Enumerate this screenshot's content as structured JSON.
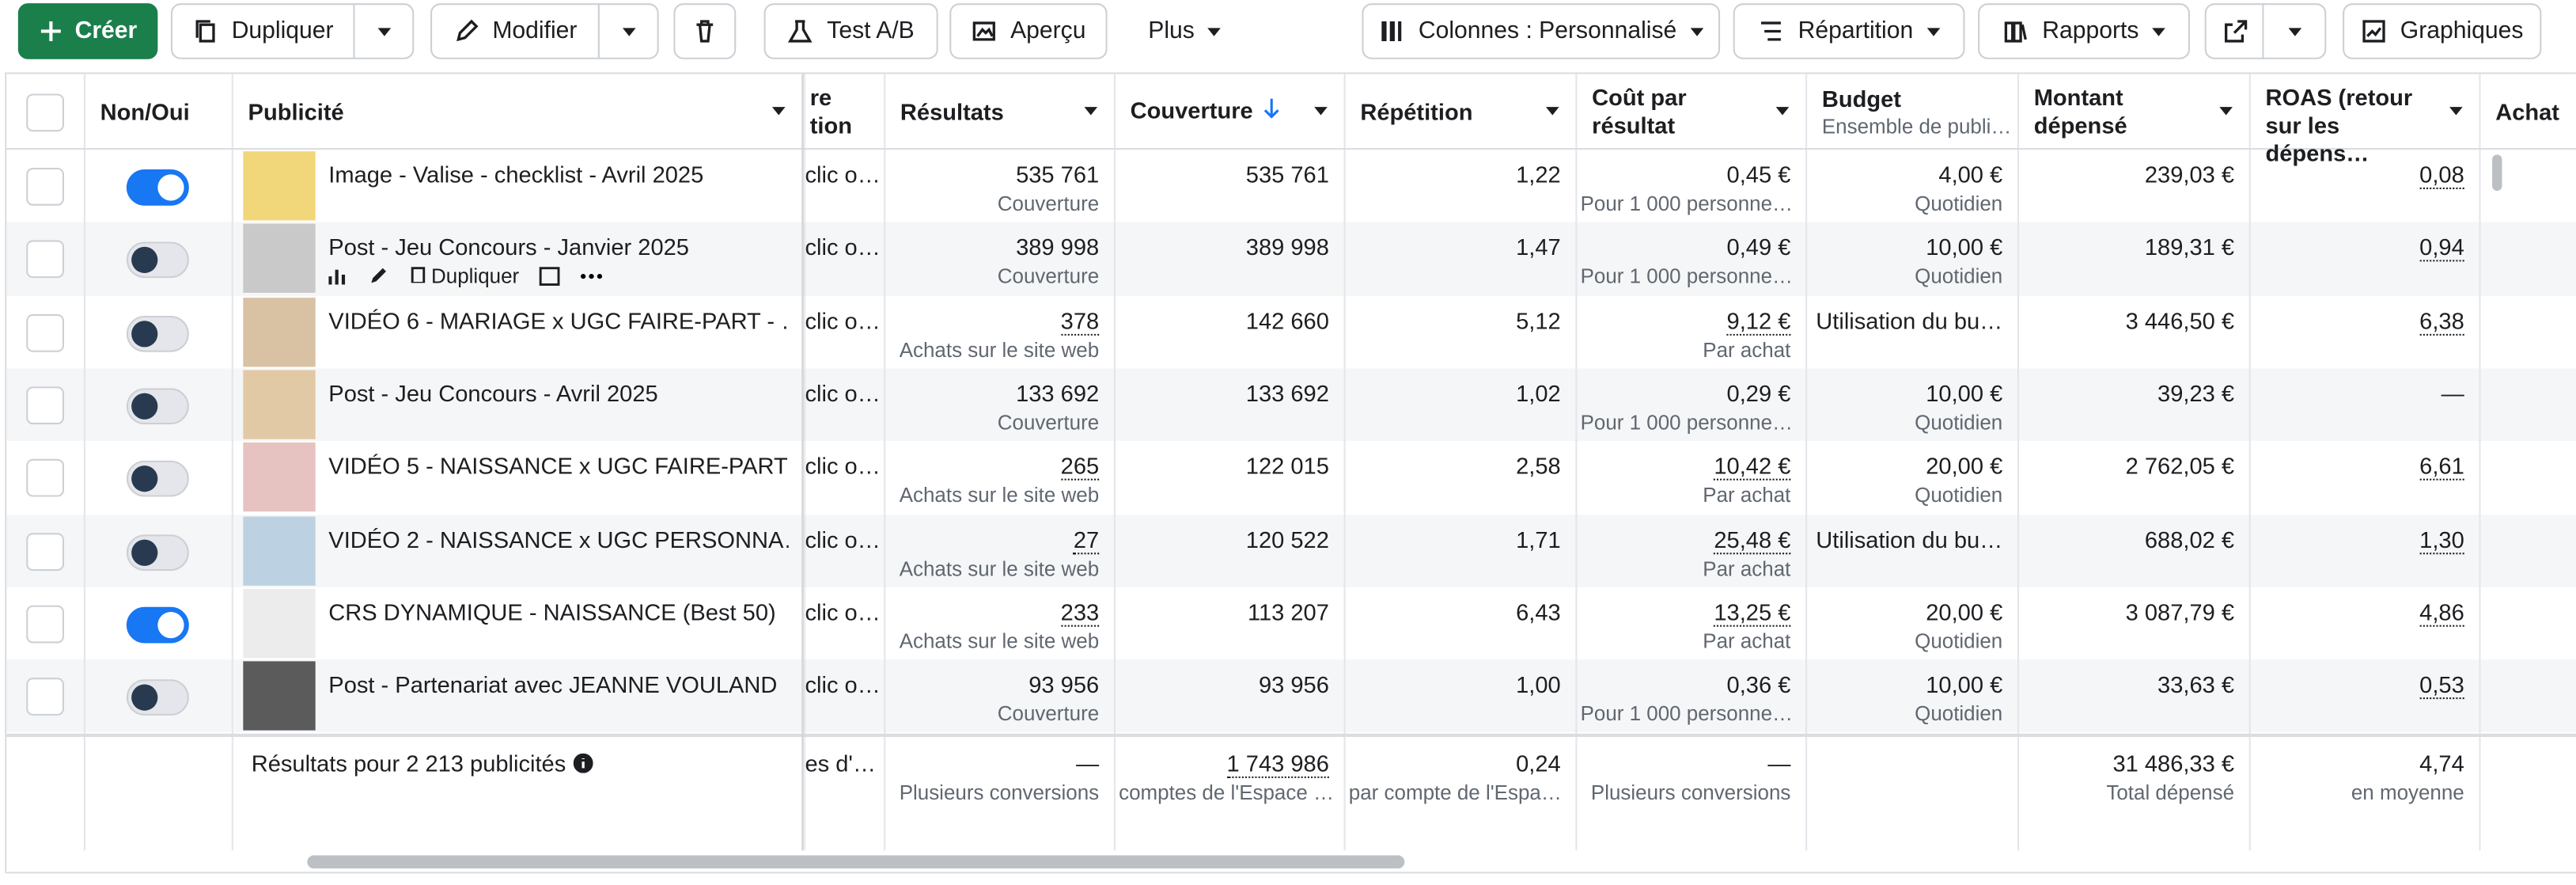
{
  "toolbar": {
    "create": "Créer",
    "duplicate": "Dupliquer",
    "edit": "Modifier",
    "ab_test": "Test A/B",
    "preview": "Aperçu",
    "more": "Plus",
    "columns": "Colonnes : Personnalisé",
    "breakdown": "Répartition",
    "reports": "Rapports",
    "charts": "Graphiques"
  },
  "table": {
    "headers": {
      "toggle": "Non/Oui",
      "ad": "Publicité",
      "partial": "re\ntion",
      "results": "Résultats",
      "reach": "Couverture",
      "frequency": "Répétition",
      "cost": "Coût par résultat",
      "budget": {
        "label": "Budget",
        "sub": "Ensemble de publi…"
      },
      "spent": "Montant dépensé",
      "roas": "ROAS (retour sur les dépens…",
      "purchase": "Achat"
    },
    "hover_action": "Dupliquer",
    "rows": [
      {
        "on": true,
        "name": "Image - Valise - checklist - Avril 2025",
        "partial": "clic o…",
        "results": {
          "value": "535 761",
          "sub": "Couverture",
          "dotted": false
        },
        "reach": "535 761",
        "frequency": "1,22",
        "cost": {
          "value": "0,45 €",
          "sub": "Pour 1 000 personne…",
          "dotted": false
        },
        "budget": {
          "value": "4,00 €",
          "sub": "Quotidien"
        },
        "spent": "239,03 €",
        "roas": {
          "value": "0,08",
          "dotted": true
        }
      },
      {
        "on": false,
        "name": "Post - Jeu Concours - Janvier 2025",
        "partial": "clic o…",
        "results": {
          "value": "389 998",
          "sub": "Couverture",
          "dotted": false
        },
        "reach": "389 998",
        "frequency": "1,47",
        "cost": {
          "value": "0,49 €",
          "sub": "Pour 1 000 personne…",
          "dotted": false
        },
        "budget": {
          "value": "10,00 €",
          "sub": "Quotidien"
        },
        "spent": "189,31 €",
        "roas": {
          "value": "0,94",
          "dotted": true
        }
      },
      {
        "on": false,
        "name": "VIDÉO 6 - MARIAGE x UGC FAIRE-PART - …",
        "partial": "clic o…",
        "results": {
          "value": "378",
          "sub": "Achats sur le site web",
          "dotted": true
        },
        "reach": "142 660",
        "frequency": "5,12",
        "cost": {
          "value": "9,12 €",
          "sub": "Par achat",
          "dotted": true
        },
        "budget": {
          "value": "Utilisation du bu…"
        },
        "spent": "3 446,50 €",
        "roas": {
          "value": "6,38",
          "dotted": true
        }
      },
      {
        "on": false,
        "name": "Post - Jeu Concours - Avril 2025",
        "partial": "clic o…",
        "results": {
          "value": "133 692",
          "sub": "Couverture",
          "dotted": false
        },
        "reach": "133 692",
        "frequency": "1,02",
        "cost": {
          "value": "0,29 €",
          "sub": "Pour 1 000 personne…",
          "dotted": false
        },
        "budget": {
          "value": "10,00 €",
          "sub": "Quotidien"
        },
        "spent": "39,23 €",
        "roas": {
          "value": "—",
          "dotted": false
        }
      },
      {
        "on": false,
        "name": "VIDÉO 5 - NAISSANCE x UGC FAIRE-PART…",
        "partial": "clic o…",
        "results": {
          "value": "265",
          "sub": "Achats sur le site web",
          "dotted": true
        },
        "reach": "122 015",
        "frequency": "2,58",
        "cost": {
          "value": "10,42 €",
          "sub": "Par achat",
          "dotted": true
        },
        "budget": {
          "value": "20,00 €",
          "sub": "Quotidien"
        },
        "spent": "2 762,05 €",
        "roas": {
          "value": "6,61",
          "dotted": true
        }
      },
      {
        "on": false,
        "name": "VIDÉO 2 - NAISSANCE x UGC PERSONNA…",
        "partial": "clic o…",
        "results": {
          "value": "27",
          "sub": "Achats sur le site web",
          "dotted": true
        },
        "reach": "120 522",
        "frequency": "1,71",
        "cost": {
          "value": "25,48 €",
          "sub": "Par achat",
          "dotted": true
        },
        "budget": {
          "value": "Utilisation du bu…"
        },
        "spent": "688,02 €",
        "roas": {
          "value": "1,30",
          "dotted": true
        }
      },
      {
        "on": true,
        "name": "CRS DYNAMIQUE - NAISSANCE (Best 50)",
        "partial": "clic o…",
        "results": {
          "value": "233",
          "sub": "Achats sur le site web",
          "dotted": true
        },
        "reach": "113 207",
        "frequency": "6,43",
        "cost": {
          "value": "13,25 €",
          "sub": "Par achat",
          "dotted": true
        },
        "budget": {
          "value": "20,00 €",
          "sub": "Quotidien"
        },
        "spent": "3 087,79 €",
        "roas": {
          "value": "4,86",
          "dotted": true
        }
      },
      {
        "on": false,
        "name": "Post - Partenariat avec JEANNE VOULAND",
        "partial": "clic o…",
        "results": {
          "value": "93 956",
          "sub": "Couverture",
          "dotted": false
        },
        "reach": "93 956",
        "frequency": "1,00",
        "cost": {
          "value": "0,36 €",
          "sub": "Pour 1 000 personne…",
          "dotted": false
        },
        "budget": {
          "value": "10,00 €",
          "sub": "Quotidien"
        },
        "spent": "33,63 €",
        "roas": {
          "value": "0,53",
          "dotted": true
        }
      }
    ],
    "footer": {
      "label": "Résultats pour 2 213 publicités",
      "partial": "es d'…",
      "results": {
        "value": "—",
        "sub": "Plusieurs conversions"
      },
      "reach": {
        "value": "1 743 986",
        "sub": "comptes de l'Espace …",
        "dotted": true
      },
      "frequency": {
        "value": "0,24",
        "sub": "par compte de l'Espa…"
      },
      "cost": {
        "value": "—",
        "sub": "Plusieurs conversions"
      },
      "spent": {
        "value": "31 486,33 €",
        "sub": "Total dépensé"
      },
      "roas": {
        "value": "4,74",
        "sub": "en moyenne"
      }
    }
  }
}
